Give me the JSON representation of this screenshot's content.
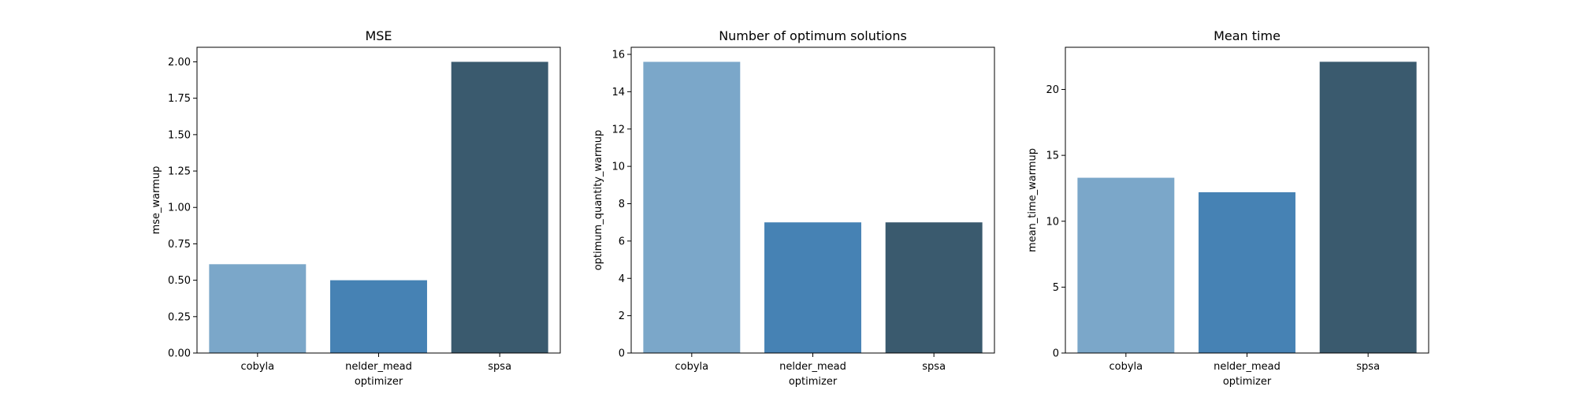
{
  "chart_data": [
    {
      "type": "bar",
      "title": "MSE",
      "xlabel": "optimizer",
      "ylabel": "mse_warmup",
      "categories": [
        "cobyla",
        "nelder_mead",
        "spsa"
      ],
      "values": [
        0.61,
        0.5,
        2.0
      ],
      "ylim": [
        0,
        2.1
      ],
      "yticks": [
        0.0,
        0.25,
        0.5,
        0.75,
        1.0,
        1.25,
        1.5,
        1.75,
        2.0
      ],
      "ytick_labels": [
        "0.00",
        "0.25",
        "0.50",
        "0.75",
        "1.00",
        "1.25",
        "1.50",
        "1.75",
        "2.00"
      ],
      "grid": false,
      "colors": [
        "#7ba7c9",
        "#4682b4",
        "#3a5a6e"
      ]
    },
    {
      "type": "bar",
      "title": "Number of optimum solutions",
      "xlabel": "optimizer",
      "ylabel": "optimum_quantity_warmup",
      "categories": [
        "cobyla",
        "nelder_mead",
        "spsa"
      ],
      "values": [
        15.6,
        7.0,
        7.0
      ],
      "ylim": [
        0,
        16.38
      ],
      "yticks": [
        0,
        2,
        4,
        6,
        8,
        10,
        12,
        14,
        16
      ],
      "ytick_labels": [
        "0",
        "2",
        "4",
        "6",
        "8",
        "10",
        "12",
        "14",
        "16"
      ],
      "grid": false,
      "colors": [
        "#7ba7c9",
        "#4682b4",
        "#3a5a6e"
      ]
    },
    {
      "type": "bar",
      "title": "Mean time",
      "xlabel": "optimizer",
      "ylabel": "mean_time_warmup",
      "categories": [
        "cobyla",
        "nelder_mead",
        "spsa"
      ],
      "values": [
        13.3,
        12.2,
        22.1
      ],
      "ylim": [
        0,
        23.2
      ],
      "yticks": [
        0,
        5,
        10,
        15,
        20
      ],
      "ytick_labels": [
        "0",
        "5",
        "10",
        "15",
        "20"
      ],
      "grid": false,
      "colors": [
        "#7ba7c9",
        "#4682b4",
        "#3a5a6e"
      ]
    }
  ]
}
